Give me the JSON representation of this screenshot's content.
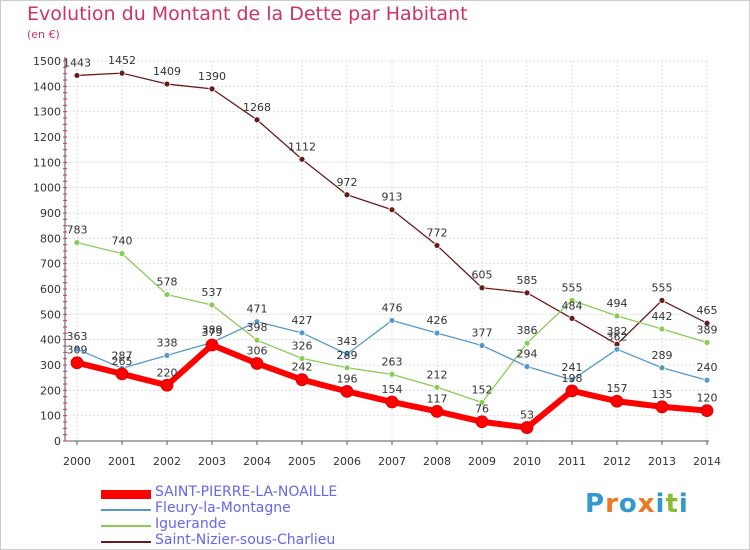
{
  "title": "Evolution du Montant de la Dette par Habitant",
  "unit": "(en €)",
  "logo": "Proxiti",
  "chart_data": {
    "type": "line",
    "title": "Evolution du Montant de la Dette par Habitant",
    "ylabel": "(en €)",
    "xlabel": "",
    "x": [
      "2000",
      "2001",
      "2002",
      "2003",
      "2004",
      "2005",
      "2006",
      "2007",
      "2008",
      "2009",
      "2010",
      "2011",
      "2012",
      "2013",
      "2014"
    ],
    "yticks": [
      0,
      100,
      200,
      300,
      400,
      500,
      600,
      700,
      800,
      900,
      1000,
      1100,
      1200,
      1300,
      1400,
      1500
    ],
    "ylim": [
      0,
      1500
    ],
    "grid": true,
    "legend_position": "bottom-left",
    "series": [
      {
        "name": "SAINT-PIERRE-LA-NOAILLE",
        "color": "#ff0000",
        "values": [
          309,
          265,
          220,
          379,
          306,
          242,
          196,
          154,
          117,
          76,
          53,
          198,
          157,
          135,
          120
        ]
      },
      {
        "name": "Fleury-la-Montagne",
        "color": "#5599cc",
        "values": [
          363,
          287,
          338,
          389,
          471,
          427,
          343,
          476,
          426,
          377,
          294,
          241,
          362,
          289,
          240
        ]
      },
      {
        "name": "Iguerande",
        "color": "#88cc55",
        "values": [
          783,
          740,
          578,
          537,
          398,
          326,
          289,
          263,
          212,
          152,
          386,
          555,
          494,
          442,
          389
        ]
      },
      {
        "name": "Saint-Nizier-sous-Charlieu",
        "color": "#6b1a1a",
        "values": [
          1443,
          1452,
          1409,
          1390,
          1268,
          1112,
          972,
          913,
          772,
          605,
          585,
          484,
          382,
          555,
          465
        ]
      }
    ]
  }
}
